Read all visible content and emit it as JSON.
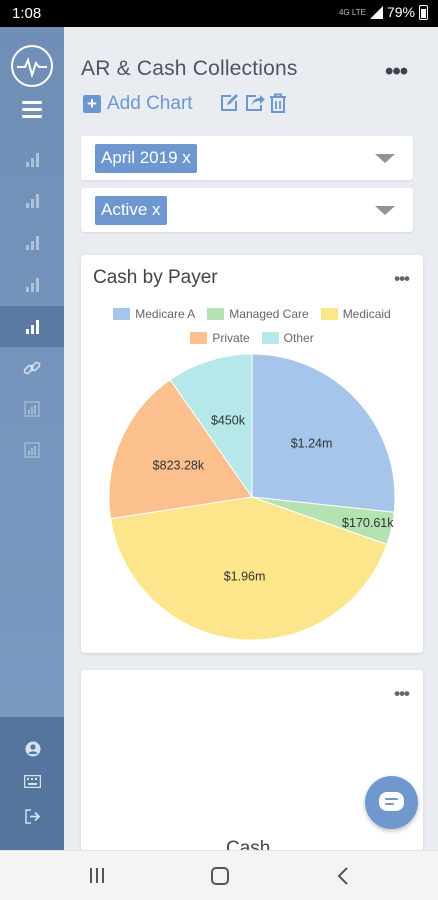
{
  "status_bar": {
    "time": "1:08",
    "network": "4G LTE",
    "battery": "79%"
  },
  "sidebar": {
    "items": [
      {
        "icon": "bar-chart-icon",
        "active": false
      },
      {
        "icon": "bar-chart-icon",
        "active": false
      },
      {
        "icon": "bar-chart-icon",
        "active": false
      },
      {
        "icon": "bar-chart-icon",
        "active": false
      },
      {
        "icon": "bar-chart-icon",
        "active": true
      },
      {
        "icon": "link-icon",
        "active": false
      },
      {
        "icon": "report-icon",
        "active": false
      },
      {
        "icon": "report-icon",
        "active": false
      }
    ],
    "bottom_icons": [
      "user-icon",
      "keyboard-icon",
      "logout-icon"
    ]
  },
  "header": {
    "title": "AR & Cash Collections",
    "more": "•••",
    "add_chart": "Add Chart"
  },
  "filters": [
    {
      "chip": "April 2019 x"
    },
    {
      "chip": "Active x"
    }
  ],
  "chart_card": {
    "title": "Cash by Payer",
    "more": "•••"
  },
  "second_card": {
    "more": "•••",
    "title_partial": "Cash"
  },
  "chart_data": {
    "type": "pie",
    "title": "Cash by Payer",
    "legend_position": "top",
    "slices": [
      {
        "label": "Medicare A",
        "value": 1.24,
        "display": "$1.24m",
        "color": "#a6c5ea"
      },
      {
        "label": "Managed Care",
        "value": 0.17061,
        "display": "$170.61k",
        "color": "#b4e3b1"
      },
      {
        "label": "Medicaid",
        "value": 1.96,
        "display": "$1.96m",
        "color": "#fde58b"
      },
      {
        "label": "Private",
        "value": 0.82328,
        "display": "$823.28k",
        "color": "#fcc08e"
      },
      {
        "label": "Other",
        "value": 0.45,
        "display": "$450k",
        "color": "#b6e8ea"
      }
    ]
  }
}
